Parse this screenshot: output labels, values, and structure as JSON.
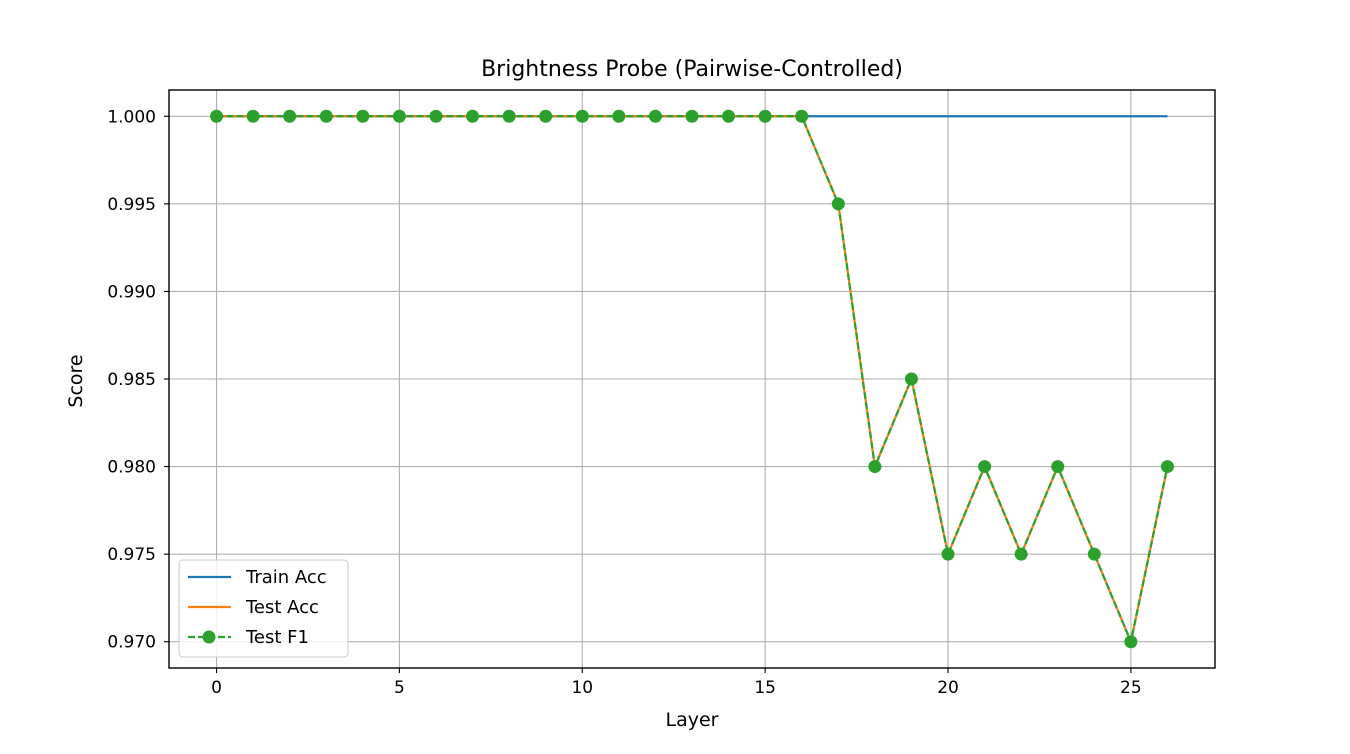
{
  "chart_data": {
    "type": "line",
    "title": "Brightness Probe (Pairwise-Controlled)",
    "xlabel": "Layer",
    "ylabel": "Score",
    "xlim": [
      -1.3,
      27.3
    ],
    "ylim": [
      0.9685,
      1.0015
    ],
    "xticks": [
      0,
      5,
      10,
      15,
      20,
      25
    ],
    "xtick_labels": [
      "0",
      "5",
      "10",
      "15",
      "20",
      "25"
    ],
    "yticks": [
      0.97,
      0.975,
      0.98,
      0.985,
      0.99,
      0.995,
      1.0
    ],
    "ytick_labels": [
      "0.970",
      "0.975",
      "0.980",
      "0.985",
      "0.990",
      "0.995",
      "1.000"
    ],
    "grid": true,
    "legend_position": "lower-left",
    "x": [
      0,
      1,
      2,
      3,
      4,
      5,
      6,
      7,
      8,
      9,
      10,
      11,
      12,
      13,
      14,
      15,
      16,
      17,
      18,
      19,
      20,
      21,
      22,
      23,
      24,
      25,
      26
    ],
    "series": [
      {
        "name": "Train Acc",
        "color": "#1f77b4",
        "style": "solid",
        "marker": "none",
        "values": [
          1.0,
          1.0,
          1.0,
          1.0,
          1.0,
          1.0,
          1.0,
          1.0,
          1.0,
          1.0,
          1.0,
          1.0,
          1.0,
          1.0,
          1.0,
          1.0,
          1.0,
          1.0,
          1.0,
          1.0,
          1.0,
          1.0,
          1.0,
          1.0,
          1.0,
          1.0,
          1.0
        ]
      },
      {
        "name": "Test Acc",
        "color": "#ff7f0e",
        "style": "solid",
        "marker": "none",
        "values": [
          1.0,
          1.0,
          1.0,
          1.0,
          1.0,
          1.0,
          1.0,
          1.0,
          1.0,
          1.0,
          1.0,
          1.0,
          1.0,
          1.0,
          1.0,
          1.0,
          1.0,
          0.995,
          0.98,
          0.985,
          0.975,
          0.98,
          0.975,
          0.98,
          0.975,
          0.97,
          0.98
        ]
      },
      {
        "name": "Test F1",
        "color": "#2ca02c",
        "style": "dashed",
        "marker": "circle",
        "values": [
          1.0,
          1.0,
          1.0,
          1.0,
          1.0,
          1.0,
          1.0,
          1.0,
          1.0,
          1.0,
          1.0,
          1.0,
          1.0,
          1.0,
          1.0,
          1.0,
          1.0,
          0.995,
          0.98,
          0.985,
          0.975,
          0.98,
          0.975,
          0.98,
          0.975,
          0.97,
          0.98
        ]
      }
    ]
  }
}
